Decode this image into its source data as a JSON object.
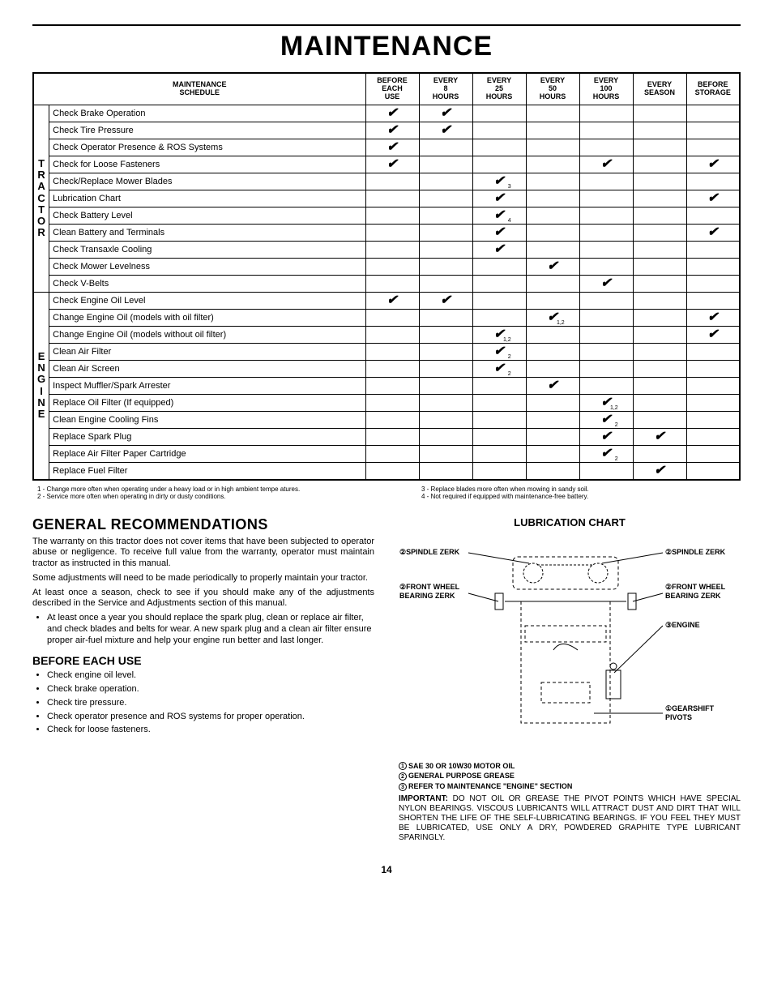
{
  "page_title": "MAINTENANCE",
  "schedule_title_l1": "MAINTENANCE",
  "schedule_title_l2": "SCHEDULE",
  "cols": [
    {
      "l1": "BEFORE",
      "l2": "EACH",
      "l3": "USE"
    },
    {
      "l1": "EVERY",
      "l2": "8",
      "l3": "HOURS"
    },
    {
      "l1": "EVERY",
      "l2": "25",
      "l3": "HOURS"
    },
    {
      "l1": "EVERY",
      "l2": "50",
      "l3": "HOURS"
    },
    {
      "l1": "EVERY",
      "l2": "100",
      "l3": "HOURS"
    },
    {
      "l1": "EVERY",
      "l2": "SEASON",
      "l3": ""
    },
    {
      "l1": "BEFORE",
      "l2": "STORAGE",
      "l3": ""
    }
  ],
  "cat_tractor": "TRACTOR",
  "cat_engine": "ENGINE",
  "tractor_rows": [
    {
      "task": "Check Brake Operation",
      "marks": [
        "",
        "",
        "",
        "",
        "",
        "",
        ""
      ],
      "m": [
        1,
        1,
        0,
        0,
        0,
        0,
        0
      ],
      "sub": [
        "",
        "",
        "",
        "",
        "",
        "",
        ""
      ]
    },
    {
      "task": "Check Tire Pressure",
      "m": [
        1,
        1,
        0,
        0,
        0,
        0,
        0
      ],
      "sub": [
        "",
        "",
        "",
        "",
        "",
        "",
        ""
      ]
    },
    {
      "task": "Check Operator Presence & ROS Systems",
      "m": [
        1,
        0,
        0,
        0,
        0,
        0,
        0
      ],
      "sub": [
        "",
        "",
        "",
        "",
        "",
        "",
        ""
      ]
    },
    {
      "task": "Check for Loose Fasteners",
      "m": [
        1,
        0,
        0,
        0,
        1,
        0,
        1
      ],
      "sub": [
        "",
        "",
        "",
        "",
        "",
        "",
        ""
      ]
    },
    {
      "task": "Check/Replace Mower Blades",
      "m": [
        0,
        0,
        1,
        0,
        0,
        0,
        0
      ],
      "sub": [
        "",
        "",
        "3",
        "",
        "",
        "",
        ""
      ]
    },
    {
      "task": "Lubrication Chart",
      "m": [
        0,
        0,
        1,
        0,
        0,
        0,
        1
      ],
      "sub": [
        "",
        "",
        "",
        "",
        "",
        "",
        ""
      ]
    },
    {
      "task": "Check Battery Level",
      "m": [
        0,
        0,
        1,
        0,
        0,
        0,
        0
      ],
      "sub": [
        "",
        "",
        "4",
        "",
        "",
        "",
        ""
      ]
    },
    {
      "task": "Clean Battery and Terminals",
      "m": [
        0,
        0,
        1,
        0,
        0,
        0,
        1
      ],
      "sub": [
        "",
        "",
        "",
        "",
        "",
        "",
        ""
      ]
    },
    {
      "task": "Check Transaxle Cooling",
      "m": [
        0,
        0,
        1,
        0,
        0,
        0,
        0
      ],
      "sub": [
        "",
        "",
        "",
        "",
        "",
        "",
        ""
      ]
    },
    {
      "task": "Check Mower Levelness",
      "m": [
        0,
        0,
        0,
        1,
        0,
        0,
        0
      ],
      "sub": [
        "",
        "",
        "",
        "",
        "",
        "",
        ""
      ]
    },
    {
      "task": "Check V-Belts",
      "m": [
        0,
        0,
        0,
        0,
        1,
        0,
        0
      ],
      "sub": [
        "",
        "",
        "",
        "",
        "",
        "",
        ""
      ]
    }
  ],
  "engine_rows": [
    {
      "task": "Check Engine Oil Level",
      "m": [
        1,
        1,
        0,
        0,
        0,
        0,
        0
      ],
      "sub": [
        "",
        "",
        "",
        "",
        "",
        "",
        ""
      ]
    },
    {
      "task": "Change Engine Oil (models with oil filter)",
      "m": [
        0,
        0,
        0,
        1,
        0,
        0,
        1
      ],
      "sub": [
        "",
        "",
        "",
        "1,2",
        "",
        "",
        ""
      ]
    },
    {
      "task": "Change Engine Oil (models without oil filter)",
      "m": [
        0,
        0,
        1,
        0,
        0,
        0,
        1
      ],
      "sub": [
        "",
        "",
        "1,2",
        "",
        "",
        "",
        ""
      ]
    },
    {
      "task": "Clean Air Filter",
      "m": [
        0,
        0,
        1,
        0,
        0,
        0,
        0
      ],
      "sub": [
        "",
        "",
        "2",
        "",
        "",
        "",
        ""
      ]
    },
    {
      "task": "Clean Air Screen",
      "m": [
        0,
        0,
        1,
        0,
        0,
        0,
        0
      ],
      "sub": [
        "",
        "",
        "2",
        "",
        "",
        "",
        ""
      ]
    },
    {
      "task": "Inspect Muffler/Spark Arrester",
      "m": [
        0,
        0,
        0,
        1,
        0,
        0,
        0
      ],
      "sub": [
        "",
        "",
        "",
        "",
        "",
        "",
        ""
      ]
    },
    {
      "task": "Replace Oil Filter (If equipped)",
      "m": [
        0,
        0,
        0,
        0,
        1,
        0,
        0
      ],
      "sub": [
        "",
        "",
        "",
        "",
        "1,2",
        "",
        ""
      ]
    },
    {
      "task": "Clean Engine Cooling Fins",
      "m": [
        0,
        0,
        0,
        0,
        1,
        0,
        0
      ],
      "sub": [
        "",
        "",
        "",
        "",
        "2",
        "",
        ""
      ]
    },
    {
      "task": "Replace Spark Plug",
      "m": [
        0,
        0,
        0,
        0,
        1,
        1,
        0
      ],
      "sub": [
        "",
        "",
        "",
        "",
        "",
        "",
        ""
      ]
    },
    {
      "task": "Replace Air Filter Paper Cartridge",
      "m": [
        0,
        0,
        0,
        0,
        1,
        0,
        0
      ],
      "sub": [
        "",
        "",
        "",
        "",
        "2",
        "",
        ""
      ]
    },
    {
      "task": "Replace Fuel Filter",
      "m": [
        0,
        0,
        0,
        0,
        0,
        1,
        0
      ],
      "sub": [
        "",
        "",
        "",
        "",
        "",
        "",
        ""
      ]
    }
  ],
  "footnotes_left": [
    "1 - Change more often when operating under a heavy load or in high ambient tempe atures.",
    "2 - Service more often when operating in dirty or dusty conditions."
  ],
  "footnotes_right": [
    "3 - Replace blades more often when mowing in sandy soil.",
    "4 - Not required if equipped with maintenance-free battery."
  ],
  "gen_rec_title": "GENERAL RECOMMENDATIONS",
  "gen_rec_p1": "The warranty on this tractor does not cover items that have been subjected to operator abuse or negligence. To receive full value from the warranty, operator must maintain tractor as instructed in this manual.",
  "gen_rec_p2": "Some adjustments will need to be made periodically to properly maintain your tractor.",
  "gen_rec_p3": "At least once a season, check to see if you should make any of the adjustments described in the Service and Adjustments section of this manual.",
  "gen_rec_bullet": "At least once a year you should replace the spark plug, clean or replace air filter, and check blades and belts for wear.  A new spark plug and a clean air filter ensure proper air-fuel mixture and help your engine run better and last longer.",
  "before_title": "BEFORE EACH USE",
  "before_items": [
    "Check engine oil level.",
    "Check brake operation.",
    "Check tire pressure.",
    "Check operator presence and ROS systems for proper operation.",
    "Check for loose fasteners."
  ],
  "lub_title": "LUBRICATION CHART",
  "lub_labels": {
    "spindle": "SPINDLE ZERK",
    "wheel": "FRONT WHEEL BEARING ZERK",
    "engine": "ENGINE",
    "gearshift": "GEARSHIFT PIVOTS"
  },
  "lub_keys": [
    {
      "n": "1",
      "t": "SAE 30 OR 10W30 MOTOR OIL"
    },
    {
      "n": "2",
      "t": "GENERAL PURPOSE GREASE"
    },
    {
      "n": "3",
      "t": "REFER TO MAINTENANCE \"ENGINE\"  SECTION"
    }
  ],
  "important_label": "IMPORTANT:",
  "important_text": "DO NOT OIL OR GREASE THE PIVOT POINTS WHICH HAVE SPECIAL NYLON BEARINGS.  VISCOUS LUBRICANTS WILL ATTRACT DUST AND DIRT THAT WILL SHORTEN THE LIFE OF THE SELF-LUBRICATING BEARINGS.  IF YOU FEEL THEY MUST BE LUBRICATED, USE ONLY A DRY, POWDERED GRAPHITE TYPE LUBRICANT SPARINGLY.",
  "page_number": "14",
  "colors": {
    "check": "#000000"
  }
}
